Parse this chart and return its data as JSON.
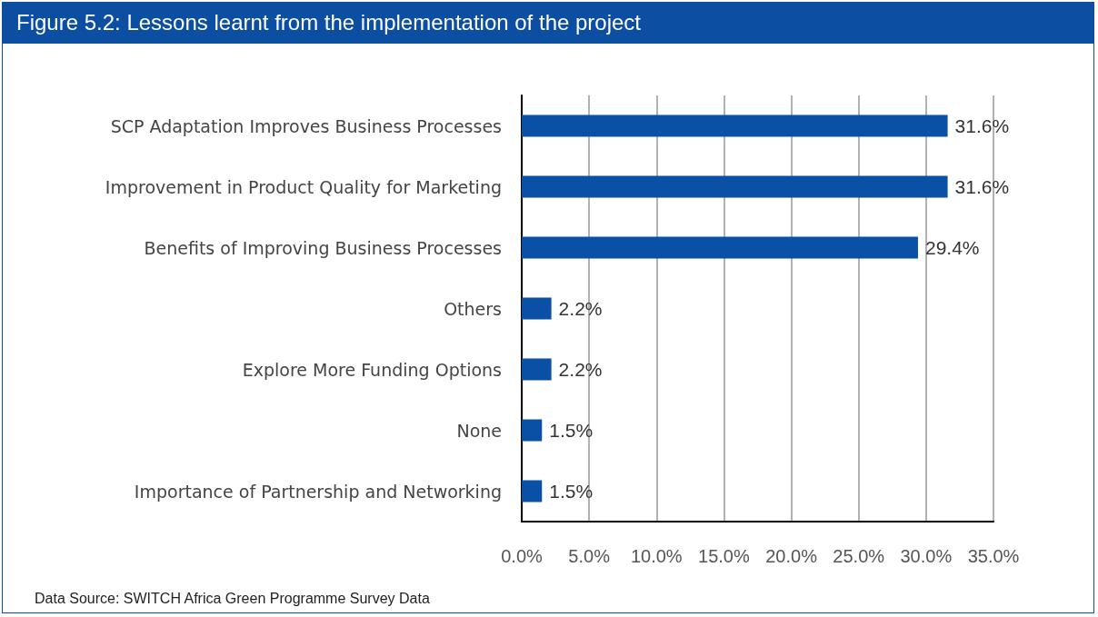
{
  "chart_data": {
    "type": "bar",
    "orientation": "horizontal",
    "title": "Figure 5.2: Lessons learnt from the implementation of the project",
    "categories": [
      "SCP Adaptation Improves Business Processes",
      "Improvement in Product Quality for Marketing",
      "Benefits of Improving Business Processes",
      "Others",
      "Explore More Funding Options",
      "None",
      "Importance of Partnership and Networking"
    ],
    "values": [
      31.6,
      31.6,
      29.4,
      2.2,
      2.2,
      1.5,
      1.5
    ],
    "value_labels": [
      "31.6%",
      "31.6%",
      "29.4%",
      "2.2%",
      "2.2%",
      "1.5%",
      "1.5%"
    ],
    "color": "#0a50a4",
    "xlim": [
      0,
      35
    ],
    "xticks": [
      {
        "value": 0,
        "label": "0.0%"
      },
      {
        "value": 5,
        "label": "5.0%"
      },
      {
        "value": 10,
        "label": "10.0%"
      },
      {
        "value": 15,
        "label": "15.0%"
      },
      {
        "value": 20,
        "label": "20.0%"
      },
      {
        "value": 25,
        "label": "25.0%"
      },
      {
        "value": 30,
        "label": "30.0%"
      },
      {
        "value": 35,
        "label": "35.0%"
      }
    ],
    "grid": "x",
    "annotations": [
      "Data Source: SWITCH Africa Green Programme Survey Data"
    ]
  }
}
